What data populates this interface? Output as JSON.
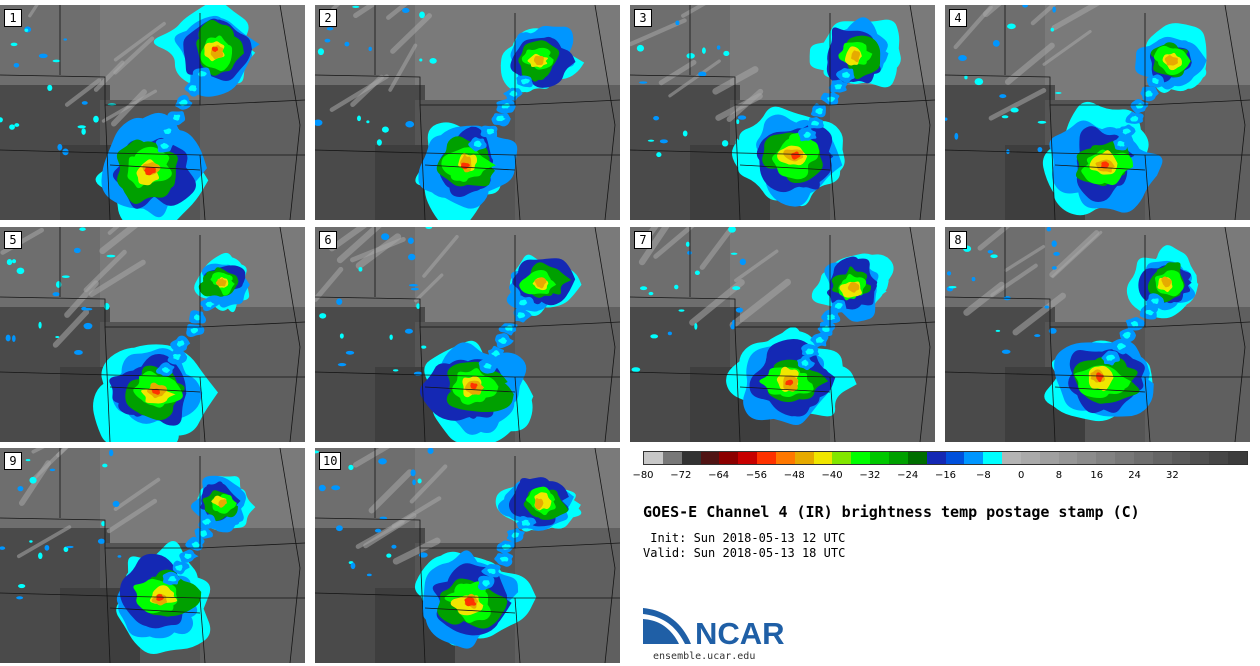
{
  "panels": [
    {
      "label": "1"
    },
    {
      "label": "2"
    },
    {
      "label": "3"
    },
    {
      "label": "4"
    },
    {
      "label": "5"
    },
    {
      "label": "6"
    },
    {
      "label": "7"
    },
    {
      "label": "8"
    },
    {
      "label": "9"
    },
    {
      "label": "10"
    }
  ],
  "colorbar": {
    "colors": [
      "#c8c8c8",
      "#787878",
      "#323232",
      "#501414",
      "#8c0000",
      "#c80000",
      "#ff3200",
      "#ff7800",
      "#e6aa00",
      "#f0e600",
      "#82e600",
      "#00ff00",
      "#00c800",
      "#00a000",
      "#006e00",
      "#1428b4",
      "#0050dc",
      "#0096ff",
      "#00ffff",
      "#b4b4b4",
      "#aaaaaa",
      "#a0a0a0",
      "#969696",
      "#8c8c8c",
      "#828282",
      "#787878",
      "#6e6e6e",
      "#646464",
      "#5a5a5a",
      "#505050",
      "#464646",
      "#3c3c3c"
    ],
    "tick_labels": [
      "−80",
      "−72",
      "−64",
      "−56",
      "−48",
      "−40",
      "−32",
      "−24",
      "−16",
      "−8",
      "0",
      "8",
      "16",
      "24",
      "32"
    ],
    "tick_values": [
      -80,
      -72,
      -64,
      -56,
      -48,
      -40,
      -32,
      -24,
      -16,
      -8,
      0,
      8,
      16,
      24,
      32
    ],
    "range": [
      -80,
      48
    ]
  },
  "title": "GOES-E Channel 4 (IR) brightness temp postage stamp (C)",
  "init_line": " Init: Sun 2018-05-13 12 UTC",
  "valid_line": "Valid: Sun 2018-05-13 18 UTC",
  "logo": {
    "text": "NCAR",
    "url_text": "ensemble.ucar.edu",
    "color": "#1f5fa6"
  }
}
